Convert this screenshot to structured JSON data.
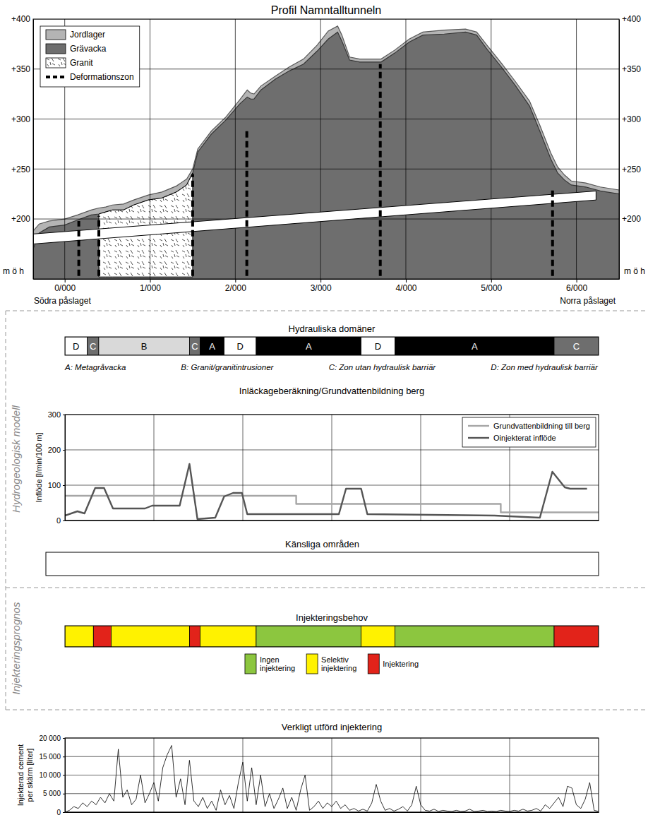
{
  "panel_labels": [
    "Hydrogeologisk modell",
    "Injekteringsprognos"
  ],
  "chart_data": [
    {
      "type": "area",
      "title": "Profil Namntalltunneln",
      "xlim": [
        -370,
        6500
      ],
      "xticks": [
        {
          "value": 0,
          "label": "0/000"
        },
        {
          "value": 1000,
          "label": "1/000"
        },
        {
          "value": 2000,
          "label": "2/000"
        },
        {
          "value": 3000,
          "label": "3/000"
        },
        {
          "value": 4000,
          "label": "4/000"
        },
        {
          "value": 5000,
          "label": "5/000"
        },
        {
          "value": 6000,
          "label": "6/000"
        }
      ],
      "ylim": [
        140,
        400
      ],
      "yticks": [
        {
          "value": 200,
          "label": "+200"
        },
        {
          "value": 250,
          "label": "+250"
        },
        {
          "value": 300,
          "label": "+300"
        },
        {
          "value": 350,
          "label": "+350"
        },
        {
          "value": 400,
          "label": "+400"
        }
      ],
      "y2lim": [
        140,
        400
      ],
      "y2ticks": [
        {
          "value": 200,
          "label": "+200"
        },
        {
          "value": 250,
          "label": "+250"
        },
        {
          "value": 300,
          "label": "+300"
        },
        {
          "value": 350,
          "label": "+350"
        },
        {
          "value": 400,
          "label": "+400"
        }
      ],
      "grid": true,
      "legend": "upper left",
      "annotations": [
        "m ö h",
        "m ö h",
        "Södra påslaget",
        "Norra påslaget"
      ],
      "series": [
        {
          "name": "Jordlager",
          "type": "area",
          "color": "#b4b4b4",
          "x": [
            -370,
            -300,
            -180,
            0,
            150,
            310,
            400,
            480,
            560,
            690,
            810,
            980,
            1140,
            1310,
            1430,
            1500,
            1560,
            1720,
            1890,
            2050,
            2140,
            2180,
            2220,
            2300,
            2470,
            2630,
            2800,
            2960,
            3090,
            3200,
            3250,
            3340,
            3460,
            3710,
            3870,
            4040,
            4200,
            4450,
            4700,
            4830,
            4950,
            5120,
            5280,
            5450,
            5570,
            5700,
            5780,
            5860,
            5940,
            6110,
            6280,
            6500
          ],
          "values": [
            188,
            195,
            198,
            200,
            204,
            209,
            211,
            212,
            214,
            215,
            219,
            224,
            227,
            233,
            240,
            250,
            270,
            288,
            302,
            319,
            329,
            326,
            325,
            333,
            343,
            352,
            360,
            374,
            388,
            393,
            384,
            362,
            360,
            360,
            369,
            380,
            387,
            389,
            390,
            387,
            374,
            356,
            338,
            318,
            294,
            266,
            252,
            244,
            238,
            236,
            232,
            229
          ]
        },
        {
          "name": "Grävacka",
          "type": "area",
          "color": "#6e6e6e",
          "x": [
            -370,
            -300,
            -180,
            0,
            150,
            310,
            400,
            480,
            560,
            690,
            810,
            980,
            1140,
            1310,
            1430,
            1500,
            1560,
            1720,
            1890,
            2050,
            2140,
            2180,
            2220,
            2300,
            2470,
            2630,
            2800,
            2960,
            3090,
            3200,
            3250,
            3340,
            3460,
            3710,
            3870,
            4040,
            4200,
            4450,
            4700,
            4830,
            4950,
            5120,
            5280,
            5450,
            5570,
            5700,
            5780,
            5860,
            5940,
            6110,
            6280,
            6500
          ],
          "values": [
            170,
            186,
            192,
            194,
            199,
            204,
            205,
            207,
            209,
            209,
            214,
            219,
            221,
            227,
            234,
            246,
            267,
            285,
            299,
            315,
            322,
            320,
            320,
            329,
            340,
            348,
            355,
            368,
            380,
            387,
            378,
            359,
            357,
            357,
            366,
            377,
            384,
            385,
            387,
            384,
            370,
            352,
            334,
            313,
            288,
            260,
            246,
            239,
            234,
            232,
            228,
            225
          ]
        },
        {
          "name": "Granit",
          "type": "area",
          "color": "#ffffff",
          "x": [
            400,
            480,
            560,
            690,
            810,
            980,
            1140,
            1310,
            1430,
            1500
          ],
          "values": [
            205,
            207,
            209,
            209,
            214,
            219,
            221,
            227,
            234,
            246
          ],
          "lower": [
            142,
            142,
            142,
            142,
            142,
            142,
            142,
            142,
            142,
            142
          ]
        },
        {
          "name": "Deformationszon",
          "type": "segments",
          "color": "#000000",
          "line_style": "dashed",
          "x": [
            165,
            400,
            1500,
            2135,
            3700,
            5720
          ],
          "top": [
            198,
            203,
            245,
            290,
            355,
            232
          ],
          "bottom": [
            143,
            143,
            143,
            143,
            143,
            143
          ]
        }
      ],
      "tunnel": {
        "x": [
          -370,
          6230
        ],
        "top": [
          185,
          228
        ],
        "bottom": [
          175,
          219
        ]
      }
    },
    {
      "type": "band",
      "title": "Hydrauliska domäner",
      "xlim": [
        0,
        6000
      ],
      "tick_labels": false,
      "bins": [
        0,
        250,
        380,
        1400,
        1520,
        1790,
        2150,
        3330,
        3710,
        5500,
        6000
      ],
      "categories": [
        "D",
        "C",
        "B",
        "C",
        "A",
        "D",
        "A",
        "D",
        "A",
        "C"
      ],
      "colors": [
        "#ffffff",
        "#6e6e6e",
        "#d9d9d9",
        "#6e6e6e",
        "#000000",
        "#ffffff",
        "#000000",
        "#ffffff",
        "#000000",
        "#6e6e6e"
      ],
      "annotations": [
        "A: Metagråvacka",
        "B: Granit/granitintrusioner",
        "C: Zon utan hydraulisk barriär",
        "D: Zon med hydraulisk barriär"
      ]
    },
    {
      "type": "line",
      "title": "Inläckageberäkning/Grundvattenbildning berg",
      "ylabel": "Inflöde [l/min/100 m]",
      "xlim": [
        0,
        6000
      ],
      "xticks": [
        1000,
        2000,
        3000,
        4000,
        5000
      ],
      "ylim": [
        0,
        300
      ],
      "yticks": [
        0,
        100,
        200,
        300
      ],
      "grid": true,
      "legend": "upper right",
      "tick_labels": "y",
      "series": [
        {
          "name": "Grundvattenbildning till berg",
          "color": "#a6a6a6",
          "x": [
            0,
            2600,
            2600,
            4900,
            4900,
            6000
          ],
          "values": [
            70,
            70,
            47,
            47,
            23,
            23
          ]
        },
        {
          "name": "Oinjekterat inflöde",
          "color": "#555555",
          "x": [
            0,
            140,
            220,
            340,
            440,
            540,
            900,
            980,
            1290,
            1400,
            1490,
            1690,
            1790,
            1890,
            1990,
            2050,
            3080,
            3160,
            3330,
            3400,
            4830,
            5340,
            5480,
            5620,
            5680,
            5870
          ],
          "values": [
            14,
            26,
            20,
            92,
            92,
            34,
            34,
            42,
            42,
            160,
            4,
            8,
            68,
            78,
            78,
            18,
            18,
            90,
            90,
            18,
            14,
            8,
            138,
            94,
            90,
            90
          ]
        }
      ]
    },
    {
      "type": "band",
      "title": "Känsliga områden",
      "tick_labels": false
    },
    {
      "type": "band",
      "title": "Injekteringsbehov",
      "xlim": [
        0,
        6000
      ],
      "tick_labels": false,
      "bins": [
        0,
        320,
        520,
        1400,
        1520,
        2150,
        3330,
        3710,
        5500,
        6000
      ],
      "colors": [
        "#fff200",
        "#e2231a",
        "#fff200",
        "#e2231a",
        "#fff200",
        "#8cc63f",
        "#fff200",
        "#8cc63f",
        "#e2231a"
      ],
      "legend": "bottom",
      "series": [
        {
          "name": "Ingen injektering",
          "color": "#8cc63f"
        },
        {
          "name": "Selektiv injektering",
          "color": "#fff200"
        },
        {
          "name": "Injektering",
          "color": "#e2231a"
        }
      ]
    },
    {
      "type": "line",
      "title": "Verkligt utförd injektering",
      "ylabel": "Injekterad cement per skärm [liter]",
      "xlim": [
        0,
        6000
      ],
      "xticks": [
        1000,
        2000,
        3000,
        4000,
        5000
      ],
      "ylim": [
        0,
        20000
      ],
      "yticks": [
        0,
        {
          "value": 5000,
          "label": "5 000"
        },
        {
          "value": 10000,
          "label": "10 000"
        },
        {
          "value": 15000,
          "label": "15 000"
        },
        {
          "value": 20000,
          "label": "20 000"
        }
      ],
      "grid": true,
      "tick_labels": "y",
      "x": [
        0,
        50,
        100,
        150,
        200,
        250,
        300,
        350,
        400,
        450,
        500,
        550,
        600,
        650,
        700,
        750,
        800,
        850,
        900,
        950,
        1000,
        1050,
        1100,
        1150,
        1200,
        1250,
        1300,
        1350,
        1400,
        1450,
        1500,
        1550,
        1600,
        1650,
        1700,
        1750,
        1800,
        1850,
        1900,
        1950,
        2000,
        2050,
        2100,
        2150,
        2200,
        2250,
        2300,
        2350,
        2400,
        2450,
        2500,
        2550,
        2600,
        2650,
        2700,
        2750,
        2800,
        2850,
        2900,
        2950,
        3000,
        3050,
        3100,
        3150,
        3200,
        3250,
        3300,
        3350,
        3400,
        3450,
        3500,
        3550,
        3600,
        3650,
        3700,
        3750,
        3800,
        3850,
        3900,
        3950,
        4000,
        4050,
        4100,
        4150,
        4200,
        4250,
        4300,
        4350,
        4400,
        4450,
        4500,
        4550,
        4600,
        4650,
        4700,
        4750,
        4800,
        4850,
        4900,
        4950,
        5000,
        5050,
        5100,
        5150,
        5200,
        5250,
        5300,
        5350,
        5400,
        5450,
        5500,
        5550,
        5600,
        5650,
        5700,
        5750,
        5800,
        5850,
        5900,
        5950,
        6000
      ],
      "series": [
        {
          "color": "#000000",
          "values": [
            0,
            500,
            1500,
            1000,
            2500,
            1500,
            3000,
            2000,
            4000,
            2500,
            5000,
            3000,
            17000,
            4000,
            6000,
            2000,
            3500,
            10000,
            2500,
            5000,
            8000,
            3000,
            12000,
            15500,
            18000,
            4000,
            9000,
            2000,
            14000,
            3000,
            1500,
            4000,
            1000,
            3000,
            500,
            6000,
            2000,
            4500,
            1000,
            8000,
            13500,
            3000,
            12000,
            2000,
            10000,
            1500,
            5000,
            1000,
            3500,
            6500,
            1000,
            4000,
            500,
            6000,
            10000,
            500,
            1500,
            3000,
            1000,
            2500,
            1500,
            3000,
            1000,
            2000,
            500,
            1000,
            300,
            800,
            300,
            2500,
            7500,
            3000,
            500,
            1000,
            300,
            800,
            1500,
            300,
            2000,
            7000,
            2000,
            500,
            300,
            800,
            200,
            500,
            300,
            200,
            500,
            200,
            300,
            800,
            200,
            300,
            500,
            200,
            300,
            200,
            500,
            300,
            200,
            500,
            300,
            800,
            300,
            500,
            1000,
            300,
            2000,
            1000,
            2500,
            4000,
            1500,
            7000,
            6500,
            2000,
            1000,
            3500,
            8000,
            500,
            200
          ]
        }
      ]
    }
  ]
}
